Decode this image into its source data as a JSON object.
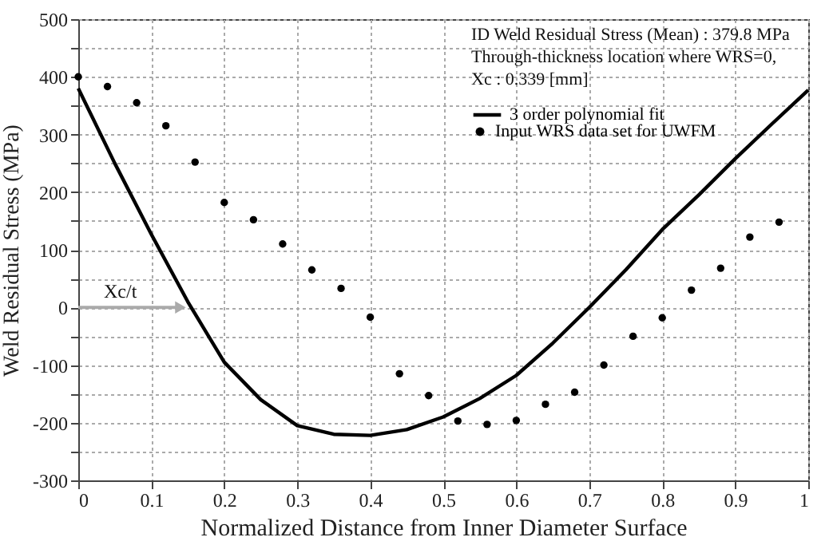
{
  "chart_data": {
    "type": "scatter",
    "xlabel": "Normalized Distance from Inner Diameter Surface",
    "ylabel": "Weld Residual Stress (MPa)",
    "xlim": [
      0,
      1
    ],
    "xticks": [
      0,
      0.1,
      0.2,
      0.3,
      0.4,
      0.5,
      0.6,
      0.7,
      0.8,
      0.9,
      1
    ],
    "ylim": [
      -300,
      500
    ],
    "yticks": [
      -300,
      {
        "value": -250,
        "label": null
      },
      -200,
      {
        "value": -150,
        "label": null
      },
      -100,
      {
        "value": -50,
        "label": null
      },
      0,
      {
        "value": 50,
        "label": null
      },
      100,
      {
        "value": 150,
        "label": null
      },
      200,
      {
        "value": 250,
        "label": null
      },
      300,
      {
        "value": 350,
        "label": null
      },
      400,
      {
        "value": 450,
        "label": null
      },
      500
    ],
    "grid": true,
    "legend": "top right",
    "annotations": [
      "ID Weld Residual Stress (Mean) : 379.8 MPa",
      "Through-thickness location where WRS=0,",
      "Xc : 0.339 [mm]",
      {
        "text": "Xc/t",
        "x": 0.14,
        "y": 0
      }
    ],
    "series": [
      {
        "name": "3 order polynomial fit",
        "type": "line",
        "color": "#000000",
        "marker": "none",
        "x": [
          0,
          0.05,
          0.1,
          0.15,
          0.2,
          0.25,
          0.3,
          0.35,
          0.4,
          0.45,
          0.5,
          0.55,
          0.6,
          0.65,
          0.7,
          0.75,
          0.8,
          0.85,
          0.9,
          0.95,
          1
        ],
        "values": [
          380,
          250,
          127,
          10,
          -95,
          -160,
          -205,
          -220,
          -222,
          -212,
          -190,
          -158,
          -118,
          -62,
          0,
          65,
          135,
          195,
          258,
          318,
          377
        ]
      },
      {
        "name": "Input WRS data set for UWFM",
        "color": "#000000",
        "marker": "circle",
        "x": [
          0,
          0.04,
          0.08,
          0.12,
          0.16,
          0.2,
          0.24,
          0.28,
          0.32,
          0.36,
          0.4,
          0.44,
          0.48,
          0.52,
          0.56,
          0.6,
          0.64,
          0.68,
          0.72,
          0.76,
          0.8,
          0.84,
          0.88,
          0.92,
          0.96
        ],
        "values": [
          400,
          383,
          355,
          315,
          252,
          182,
          152,
          110,
          65,
          33,
          -17,
          -115,
          -153,
          -197,
          -203,
          -196,
          -168,
          -147,
          -100,
          -50,
          -18,
          30,
          68,
          122,
          148
        ]
      }
    ]
  }
}
